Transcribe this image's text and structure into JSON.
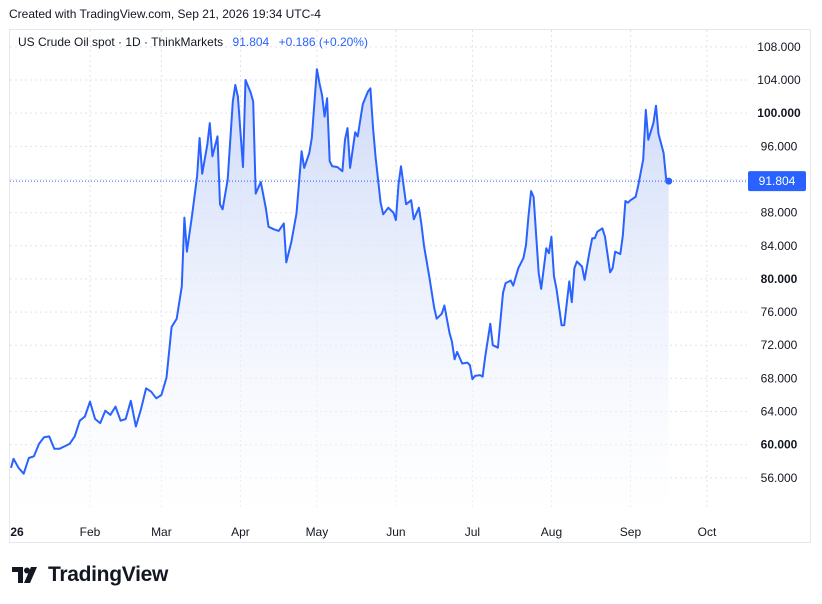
{
  "header": {
    "created_text": "Created with TradingView.com, Sep 21, 2026 19:34 UTC-4"
  },
  "legend": {
    "symbol": "US Crude Oil spot · 1D · ThinkMarkets",
    "value": "91.804",
    "change": "+0.186 (+0.20%)"
  },
  "brand": {
    "name": "TradingView",
    "logo_icon": "tradingview-logo-icon"
  },
  "colors": {
    "line": "#2962ff",
    "fill_top": "#c9d6f8",
    "fill_bottom": "#ffffff",
    "grid": "#e0e3eb",
    "text": "#131722"
  },
  "chart_data": {
    "type": "area",
    "title": "US Crude Oil spot · 1D · ThinkMarkets",
    "xlabel": "",
    "ylabel": "",
    "x_ticks": [
      "26",
      "Feb",
      "Mar",
      "Apr",
      "May",
      "Jun",
      "Jul",
      "Aug",
      "Sep",
      "Oct"
    ],
    "y_ticks": [
      "56.000",
      "60.000",
      "64.000",
      "68.000",
      "72.000",
      "76.000",
      "80.000",
      "84.000",
      "88.000",
      "92.000",
      "96.000",
      "100.000",
      "104.000",
      "108.000"
    ],
    "y_ticks_bold": [
      "60.000",
      "80.000",
      "100.000"
    ],
    "ylim": [
      52,
      111
    ],
    "grid": true,
    "last_value_label": "91.804",
    "series": [
      {
        "values": [
          [
            "2026-01-01",
            57.2
          ],
          [
            "2026-01-02",
            58.3
          ],
          [
            "2026-01-04",
            57.2
          ],
          [
            "2026-01-06",
            56.5
          ],
          [
            "2026-01-08",
            58.4
          ],
          [
            "2026-01-10",
            58.6
          ],
          [
            "2026-01-12",
            60.1
          ],
          [
            "2026-01-14",
            60.9
          ],
          [
            "2026-01-16",
            61.0
          ],
          [
            "2026-01-18",
            59.5
          ],
          [
            "2026-01-20",
            59.5
          ],
          [
            "2026-01-22",
            59.8
          ],
          [
            "2026-01-24",
            60.1
          ],
          [
            "2026-01-26",
            61.0
          ],
          [
            "2026-01-28",
            62.9
          ],
          [
            "2026-01-30",
            63.4
          ],
          [
            "2026-02-01",
            65.2
          ],
          [
            "2026-02-03",
            63.1
          ],
          [
            "2026-02-05",
            62.6
          ],
          [
            "2026-02-07",
            64.1
          ],
          [
            "2026-02-09",
            63.6
          ],
          [
            "2026-02-11",
            64.6
          ],
          [
            "2026-02-13",
            62.9
          ],
          [
            "2026-02-15",
            63.1
          ],
          [
            "2026-02-17",
            65.3
          ],
          [
            "2026-02-19",
            62.2
          ],
          [
            "2026-02-21",
            64.3
          ],
          [
            "2026-02-23",
            66.8
          ],
          [
            "2026-02-25",
            66.4
          ],
          [
            "2026-02-27",
            65.6
          ],
          [
            "2026-03-01",
            66.0
          ],
          [
            "2026-03-03",
            68.1
          ],
          [
            "2026-03-05",
            74.2
          ],
          [
            "2026-03-07",
            75.2
          ],
          [
            "2026-03-09",
            79.1
          ],
          [
            "2026-03-10",
            87.4
          ],
          [
            "2026-03-11",
            83.3
          ],
          [
            "2026-03-13",
            87.6
          ],
          [
            "2026-03-15",
            92.4
          ],
          [
            "2026-03-16",
            97.0
          ],
          [
            "2026-03-17",
            92.7
          ],
          [
            "2026-03-19",
            96.2
          ],
          [
            "2026-03-20",
            98.8
          ],
          [
            "2026-03-21",
            94.8
          ],
          [
            "2026-03-23",
            97.2
          ],
          [
            "2026-03-24",
            89.0
          ],
          [
            "2026-03-25",
            88.4
          ],
          [
            "2026-03-27",
            92.0
          ],
          [
            "2026-03-29",
            101.4
          ],
          [
            "2026-03-30",
            103.4
          ],
          [
            "2026-03-31",
            102.0
          ],
          [
            "2026-04-02",
            93.5
          ],
          [
            "2026-04-03",
            104.0
          ],
          [
            "2026-04-05",
            102.5
          ],
          [
            "2026-04-06",
            101.4
          ],
          [
            "2026-04-07",
            90.3
          ],
          [
            "2026-04-09",
            91.7
          ],
          [
            "2026-04-11",
            88.5
          ],
          [
            "2026-04-12",
            86.3
          ],
          [
            "2026-04-14",
            86.0
          ],
          [
            "2026-04-16",
            85.8
          ],
          [
            "2026-04-18",
            86.7
          ],
          [
            "2026-04-19",
            82.0
          ],
          [
            "2026-04-21",
            84.5
          ],
          [
            "2026-04-23",
            87.9
          ],
          [
            "2026-04-25",
            95.4
          ],
          [
            "2026-04-26",
            93.4
          ],
          [
            "2026-04-28",
            95.2
          ],
          [
            "2026-04-29",
            97.0
          ],
          [
            "2026-05-01",
            105.3
          ],
          [
            "2026-05-02",
            103.6
          ],
          [
            "2026-05-03",
            102.2
          ],
          [
            "2026-05-04",
            99.6
          ],
          [
            "2026-05-05",
            101.8
          ],
          [
            "2026-05-06",
            94.2
          ],
          [
            "2026-05-07",
            93.6
          ],
          [
            "2026-05-09",
            93.5
          ],
          [
            "2026-05-11",
            93.0
          ],
          [
            "2026-05-12",
            96.8
          ],
          [
            "2026-05-13",
            98.2
          ],
          [
            "2026-05-14",
            93.4
          ],
          [
            "2026-05-16",
            97.7
          ],
          [
            "2026-05-17",
            97.2
          ],
          [
            "2026-05-19",
            101.1
          ],
          [
            "2026-05-21",
            102.6
          ],
          [
            "2026-05-22",
            103.0
          ],
          [
            "2026-05-23",
            98.3
          ],
          [
            "2026-05-24",
            94.8
          ],
          [
            "2026-05-26",
            89.2
          ],
          [
            "2026-05-27",
            87.8
          ],
          [
            "2026-05-29",
            88.6
          ],
          [
            "2026-05-31",
            88.0
          ],
          [
            "2026-06-01",
            87.1
          ],
          [
            "2026-06-02",
            91.4
          ],
          [
            "2026-06-03",
            93.6
          ],
          [
            "2026-06-05",
            89.0
          ],
          [
            "2026-06-07",
            89.5
          ],
          [
            "2026-06-08",
            87.2
          ],
          [
            "2026-06-10",
            88.6
          ],
          [
            "2026-06-11",
            86.6
          ],
          [
            "2026-06-12",
            84.0
          ],
          [
            "2026-06-14",
            80.4
          ],
          [
            "2026-06-16",
            76.5
          ],
          [
            "2026-06-17",
            75.2
          ],
          [
            "2026-06-19",
            75.8
          ],
          [
            "2026-06-20",
            76.8
          ],
          [
            "2026-06-22",
            73.5
          ],
          [
            "2026-06-23",
            72.4
          ],
          [
            "2026-06-24",
            70.3
          ],
          [
            "2026-06-25",
            71.2
          ],
          [
            "2026-06-27",
            69.8
          ],
          [
            "2026-06-29",
            69.9
          ],
          [
            "2026-06-30",
            69.6
          ],
          [
            "2026-07-01",
            67.9
          ],
          [
            "2026-07-02",
            68.3
          ],
          [
            "2026-07-04",
            68.4
          ],
          [
            "2026-07-05",
            68.2
          ],
          [
            "2026-07-06",
            70.6
          ],
          [
            "2026-07-08",
            74.6
          ],
          [
            "2026-07-09",
            72.0
          ],
          [
            "2026-07-11",
            71.7
          ],
          [
            "2026-07-13",
            78.3
          ],
          [
            "2026-07-14",
            79.5
          ],
          [
            "2026-07-16",
            79.8
          ],
          [
            "2026-07-17",
            79.2
          ],
          [
            "2026-07-19",
            81.3
          ],
          [
            "2026-07-21",
            82.5
          ],
          [
            "2026-07-22",
            84.1
          ],
          [
            "2026-07-23",
            87.6
          ],
          [
            "2026-07-24",
            90.6
          ],
          [
            "2026-07-25",
            89.9
          ],
          [
            "2026-07-27",
            80.7
          ],
          [
            "2026-07-28",
            78.8
          ],
          [
            "2026-07-30",
            83.7
          ],
          [
            "2026-07-31",
            83.1
          ],
          [
            "2026-08-01",
            85.1
          ],
          [
            "2026-08-02",
            80.3
          ],
          [
            "2026-08-03",
            78.8
          ],
          [
            "2026-08-05",
            74.4
          ],
          [
            "2026-08-06",
            74.4
          ],
          [
            "2026-08-08",
            79.7
          ],
          [
            "2026-08-09",
            77.2
          ],
          [
            "2026-08-10",
            81.3
          ],
          [
            "2026-08-11",
            82.1
          ],
          [
            "2026-08-13",
            81.5
          ],
          [
            "2026-08-14",
            79.9
          ],
          [
            "2026-08-16",
            83.4
          ],
          [
            "2026-08-17",
            84.9
          ],
          [
            "2026-08-18",
            84.9
          ],
          [
            "2026-08-19",
            85.7
          ],
          [
            "2026-08-21",
            86.1
          ],
          [
            "2026-08-22",
            85.1
          ],
          [
            "2026-08-24",
            80.8
          ],
          [
            "2026-08-25",
            81.3
          ],
          [
            "2026-08-26",
            83.3
          ],
          [
            "2026-08-28",
            83.0
          ],
          [
            "2026-08-29",
            85.2
          ],
          [
            "2026-08-30",
            89.4
          ],
          [
            "2026-08-31",
            89.2
          ],
          [
            "2026-09-01",
            89.5
          ],
          [
            "2026-09-03",
            89.9
          ],
          [
            "2026-09-04",
            91.2
          ],
          [
            "2026-09-06",
            94.4
          ],
          [
            "2026-09-07",
            100.4
          ],
          [
            "2026-09-08",
            96.8
          ],
          [
            "2026-09-10",
            98.8
          ],
          [
            "2026-09-11",
            100.9
          ],
          [
            "2026-09-12",
            97.5
          ],
          [
            "2026-09-14",
            95.2
          ],
          [
            "2026-09-15",
            92.0
          ],
          [
            "2026-09-16",
            91.8
          ]
        ]
      }
    ]
  }
}
